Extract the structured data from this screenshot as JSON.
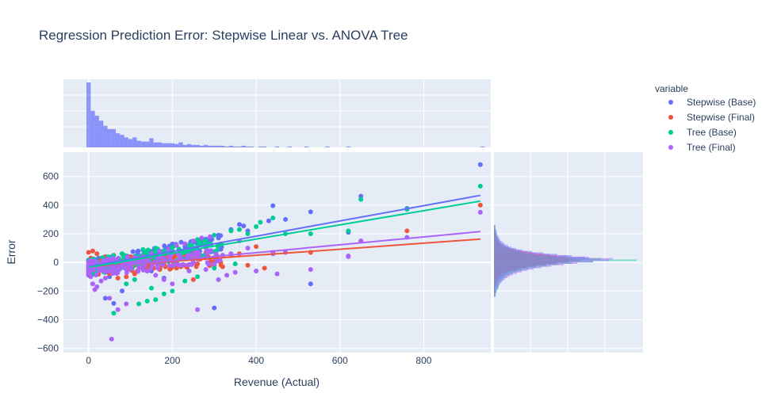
{
  "chart_data": {
    "type": "scatter",
    "title": "Regression Prediction Error: Stepwise Linear vs. ANOVA Tree",
    "xlabel": "Revenue (Actual)",
    "ylabel": "Error",
    "xlim": [
      -60,
      960
    ],
    "ylim": [
      -630,
      770
    ],
    "x_ticks": [
      0,
      200,
      400,
      600,
      800
    ],
    "x_tick_labels": [
      "0",
      "200",
      "400",
      "600",
      "800"
    ],
    "y_ticks": [
      -600,
      -400,
      -200,
      0,
      200,
      400,
      600
    ],
    "y_tick_labels": [
      "−600",
      "−400",
      "−200",
      "0",
      "200",
      "400",
      "600"
    ],
    "legend": {
      "title": "variable",
      "placement": "right",
      "entries": [
        "Stepwise (Base)",
        "Stepwise (Final)",
        "Tree (Base)",
        "Tree (Final)"
      ]
    },
    "grid": true,
    "marginal_x": "histogram",
    "marginal_y": "histogram",
    "trendlines": [
      {
        "name": "Stepwise (Base)",
        "x": [
          0,
          935
        ],
        "y": [
          -30,
          468
        ]
      },
      {
        "name": "Stepwise (Final)",
        "x": [
          0,
          935
        ],
        "y": [
          -35,
          163
        ]
      },
      {
        "name": "Tree (Base)",
        "x": [
          0,
          935
        ],
        "y": [
          -35,
          428
        ]
      },
      {
        "name": "Tree (Final)",
        "x": [
          0,
          935
        ],
        "y": [
          -42,
          215
        ]
      }
    ],
    "series": [
      {
        "name": "Stepwise (Base)",
        "color": "#636efa",
        "points": [
          [
            935,
            683
          ],
          [
            650,
            462
          ],
          [
            760,
            377
          ],
          [
            530,
            353
          ],
          [
            440,
            396
          ],
          [
            370,
            255
          ],
          [
            360,
            265
          ],
          [
            280,
            163
          ],
          [
            300,
            -318
          ],
          [
            530,
            -150
          ],
          [
            60,
            -286
          ],
          [
            40,
            -250
          ],
          [
            80,
            -200
          ],
          [
            150,
            -60
          ],
          [
            200,
            70
          ],
          [
            250,
            90
          ],
          [
            310,
            170
          ],
          [
            380,
            220
          ],
          [
            430,
            290
          ],
          [
            120,
            30
          ],
          [
            90,
            -20
          ],
          [
            180,
            -110
          ],
          [
            340,
            230
          ],
          [
            470,
            300
          ],
          [
            620,
            210
          ],
          [
            20,
            -40
          ],
          [
            10,
            -60
          ],
          [
            50,
            -100
          ],
          [
            230,
            110
          ],
          [
            270,
            40
          ]
        ]
      },
      {
        "name": "Stepwise (Final)",
        "color": "#ef553b",
        "points": [
          [
            935,
            400
          ],
          [
            760,
            220
          ],
          [
            650,
            150
          ],
          [
            530,
            70
          ],
          [
            470,
            70
          ],
          [
            440,
            70
          ],
          [
            400,
            110
          ],
          [
            380,
            -20
          ],
          [
            360,
            60
          ],
          [
            320,
            -30
          ],
          [
            300,
            -20
          ],
          [
            280,
            40
          ],
          [
            240,
            30
          ],
          [
            200,
            10
          ],
          [
            180,
            -10
          ],
          [
            150,
            0
          ],
          [
            120,
            20
          ],
          [
            100,
            40
          ],
          [
            80,
            60
          ],
          [
            60,
            50
          ],
          [
            40,
            40
          ],
          [
            20,
            60
          ],
          [
            10,
            80
          ],
          [
            5,
            30
          ],
          [
            30,
            20
          ],
          [
            50,
            -80
          ],
          [
            70,
            -110
          ],
          [
            90,
            -100
          ],
          [
            140,
            -60
          ],
          [
            170,
            -50
          ],
          [
            220,
            -30
          ],
          [
            260,
            -10
          ],
          [
            340,
            50
          ],
          [
            420,
            -40
          ],
          [
            0,
            70
          ],
          [
            15,
            -20
          ],
          [
            45,
            -60
          ],
          [
            110,
            -80
          ],
          [
            210,
            -40
          ],
          [
            250,
            -120
          ]
        ]
      },
      {
        "name": "Tree (Base)",
        "color": "#00cc96",
        "points": [
          [
            935,
            533
          ],
          [
            650,
            440
          ],
          [
            760,
            370
          ],
          [
            620,
            220
          ],
          [
            530,
            200
          ],
          [
            470,
            200
          ],
          [
            440,
            310
          ],
          [
            410,
            280
          ],
          [
            400,
            250
          ],
          [
            380,
            200
          ],
          [
            360,
            230
          ],
          [
            340,
            220
          ],
          [
            300,
            190
          ],
          [
            280,
            150
          ],
          [
            260,
            160
          ],
          [
            240,
            120
          ],
          [
            200,
            80
          ],
          [
            180,
            70
          ],
          [
            160,
            100
          ],
          [
            140,
            50
          ],
          [
            120,
            40
          ],
          [
            110,
            30
          ],
          [
            90,
            20
          ],
          [
            70,
            10
          ],
          [
            50,
            -10
          ],
          [
            30,
            -30
          ],
          [
            10,
            -60
          ],
          [
            5,
            -80
          ],
          [
            60,
            -355
          ],
          [
            120,
            -290
          ],
          [
            140,
            -270
          ],
          [
            160,
            -260
          ],
          [
            180,
            -220
          ],
          [
            200,
            -200
          ],
          [
            230,
            -130
          ],
          [
            260,
            -100
          ],
          [
            300,
            -40
          ],
          [
            350,
            -10
          ],
          [
            90,
            -150
          ],
          [
            110,
            -120
          ],
          [
            150,
            -180
          ],
          [
            40,
            -50
          ],
          [
            20,
            -20
          ],
          [
            80,
            60
          ],
          [
            130,
            90
          ]
        ]
      },
      {
        "name": "Tree (Final)",
        "color": "#ab63fa",
        "points": [
          [
            935,
            350
          ],
          [
            760,
            175
          ],
          [
            650,
            150
          ],
          [
            620,
            40
          ],
          [
            530,
            -50
          ],
          [
            470,
            70
          ],
          [
            440,
            60
          ],
          [
            380,
            100
          ],
          [
            360,
            150
          ],
          [
            340,
            60
          ],
          [
            320,
            50
          ],
          [
            300,
            -10
          ],
          [
            280,
            -50
          ],
          [
            260,
            -330
          ],
          [
            240,
            -60
          ],
          [
            220,
            -20
          ],
          [
            200,
            -150
          ],
          [
            180,
            -120
          ],
          [
            160,
            -90
          ],
          [
            140,
            -60
          ],
          [
            120,
            -40
          ],
          [
            100,
            -20
          ],
          [
            80,
            -10
          ],
          [
            60,
            -40
          ],
          [
            55,
            -535
          ],
          [
            40,
            -110
          ],
          [
            30,
            -130
          ],
          [
            20,
            -170
          ],
          [
            15,
            -190
          ],
          [
            10,
            -150
          ],
          [
            5,
            -100
          ],
          [
            0,
            -90
          ],
          [
            70,
            -330
          ],
          [
            90,
            -290
          ],
          [
            50,
            -250
          ],
          [
            110,
            30
          ],
          [
            130,
            40
          ],
          [
            150,
            60
          ],
          [
            170,
            80
          ],
          [
            190,
            90
          ],
          [
            210,
            120
          ],
          [
            230,
            130
          ],
          [
            250,
            150
          ],
          [
            270,
            170
          ],
          [
            290,
            180
          ],
          [
            310,
            -120
          ],
          [
            330,
            -90
          ],
          [
            350,
            -70
          ],
          [
            400,
            -60
          ],
          [
            450,
            -80
          ],
          [
            620,
            45
          ],
          [
            25,
            -60
          ],
          [
            35,
            -20
          ],
          [
            45,
            10
          ]
        ]
      }
    ],
    "marginal_x_hist": {
      "series": "Stepwise (Base)",
      "color": "#636efa",
      "bin_width": 10,
      "start": -5,
      "counts": [
        78,
        44,
        38,
        32,
        26,
        22,
        22,
        17,
        15,
        12,
        10,
        12,
        8,
        7,
        7,
        11,
        6,
        6,
        5,
        5,
        5,
        4,
        6,
        3,
        4,
        3,
        3,
        2,
        3,
        2,
        2,
        2,
        2,
        1,
        2,
        1,
        1,
        2,
        1,
        1,
        0,
        1,
        1,
        0,
        0,
        1,
        0,
        0,
        1,
        0,
        0,
        0,
        1,
        0,
        0,
        0,
        0,
        1,
        0,
        0,
        0,
        0,
        1,
        0,
        0,
        0,
        0,
        0,
        0,
        0,
        0,
        0,
        0,
        0,
        0,
        0,
        0,
        0,
        0,
        0,
        0,
        0,
        0,
        0,
        0,
        0,
        0,
        0,
        0,
        0,
        0,
        0,
        0,
        0,
        1
      ]
    },
    "marginal_y_hist": {
      "bin_width": 10,
      "start": -240,
      "series": [
        {
          "name": "Stepwise (Base)",
          "color": "#636efa",
          "counts": [
            1,
            1,
            1,
            2,
            2,
            2,
            3,
            3,
            4,
            5,
            5,
            6,
            8,
            10,
            12,
            14,
            18,
            22,
            28,
            34,
            42,
            52,
            64,
            78,
            95,
            110,
            120,
            115,
            98,
            80,
            62,
            48,
            36,
            28,
            22,
            18,
            14,
            12,
            10,
            8,
            7,
            6,
            5,
            4,
            4,
            3,
            3,
            2,
            2,
            2
          ]
        },
        {
          "name": "Stepwise (Final)",
          "color": "#ef553b",
          "counts": [
            0,
            0,
            0,
            0,
            0,
            1,
            1,
            1,
            2,
            2,
            2,
            3,
            4,
            5,
            7,
            9,
            12,
            16,
            22,
            30,
            40,
            52,
            66,
            80,
            95,
            105,
            100,
            90,
            78,
            64,
            50,
            38,
            28,
            20,
            14,
            10,
            8,
            6,
            5,
            4,
            3,
            3,
            2,
            2,
            1,
            1,
            1,
            1,
            0,
            0
          ]
        },
        {
          "name": "Tree (Base)",
          "color": "#00cc96",
          "counts": [
            2,
            2,
            3,
            3,
            4,
            5,
            6,
            6,
            7,
            8,
            9,
            10,
            12,
            14,
            16,
            20,
            24,
            30,
            36,
            44,
            54,
            66,
            80,
            98,
            125,
            180,
            135,
            95,
            70,
            52,
            40,
            32,
            26,
            20,
            16,
            12,
            10,
            8,
            7,
            6,
            5,
            4,
            4,
            3,
            3,
            2,
            2,
            2,
            1,
            1
          ]
        },
        {
          "name": "Tree (Final)",
          "color": "#ab63fa",
          "counts": [
            2,
            2,
            2,
            3,
            3,
            4,
            5,
            6,
            7,
            8,
            10,
            12,
            14,
            17,
            20,
            24,
            29,
            35,
            42,
            50,
            60,
            72,
            88,
            105,
            125,
            145,
            150,
            120,
            92,
            70,
            54,
            42,
            32,
            25,
            19,
            15,
            12,
            9,
            7,
            6,
            5,
            4,
            3,
            3,
            2,
            2,
            2,
            1,
            1,
            1
          ]
        }
      ]
    }
  }
}
